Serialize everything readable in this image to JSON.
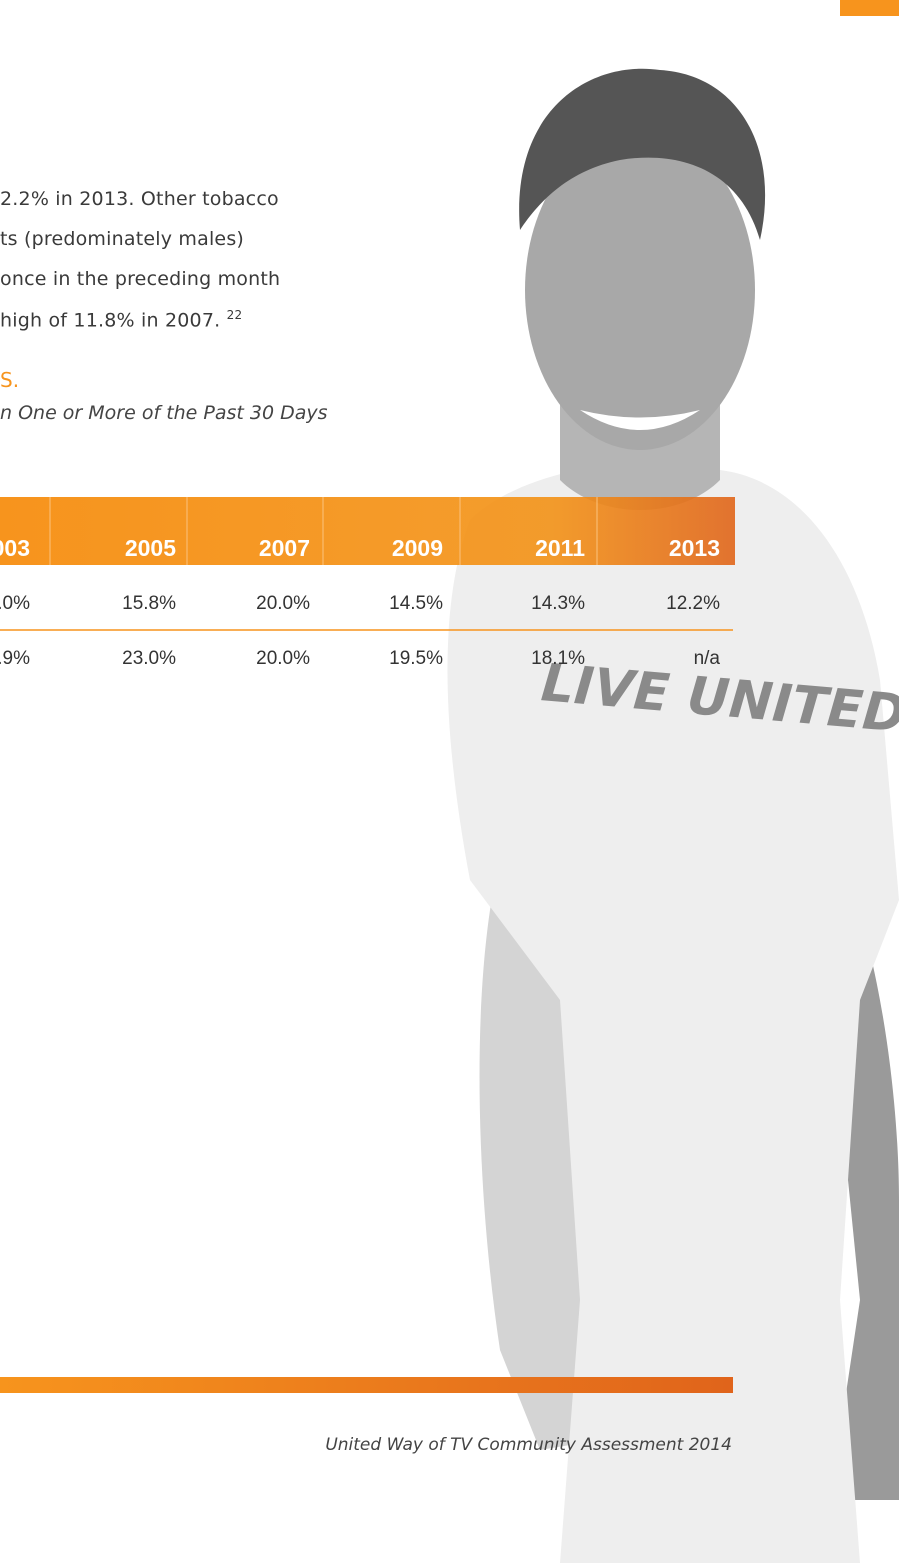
{
  "paragraph": {
    "lines": [
      "2.2% in 2013. Other tobacco",
      "ts (predominately males)",
      "once in the preceding month",
      "high of 11.8% in 2007."
    ],
    "footnote": "22"
  },
  "table_heading": "S.",
  "table_subtitle": "n One or More of the Past 30 Days",
  "table": {
    "header": [
      "003",
      "2005",
      "2007",
      "2009",
      "2011",
      "2013"
    ],
    "rows": [
      [
        ".0%",
        "15.8%",
        "20.0%",
        "14.5%",
        "14.3%",
        "12.2%"
      ],
      [
        ".9%",
        "23.0%",
        "20.0%",
        "19.5%",
        "18.1%",
        "n/a"
      ]
    ]
  },
  "photo_text": "LIVE UNITED",
  "footer": "United Way of TV Community Assessment 2014"
}
